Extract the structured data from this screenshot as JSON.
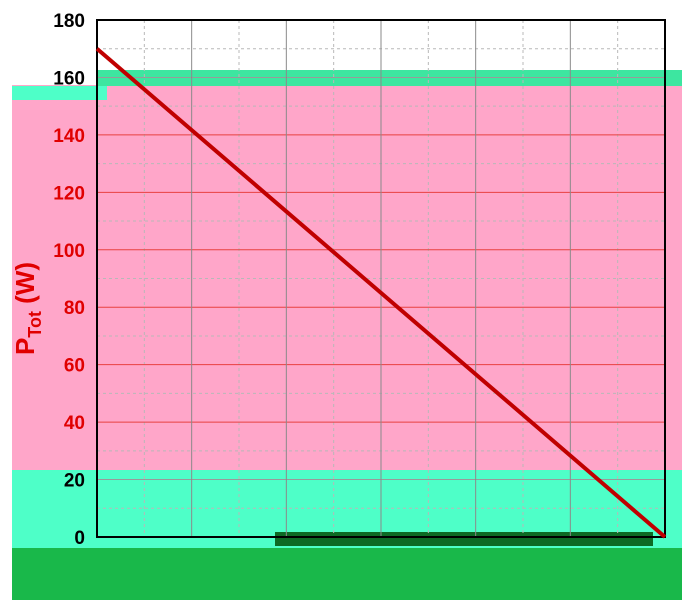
{
  "chart_data": {
    "type": "line",
    "title": "",
    "xlabel": "",
    "ylabel": {
      "main": "P",
      "subscript": "Tot",
      "unit": " (W)"
    },
    "x_tick_labels": [],
    "ylim": [
      0,
      180
    ],
    "yticks": [
      {
        "value": 0,
        "label": "0"
      },
      {
        "value": 20,
        "label": "20"
      },
      {
        "value": 40,
        "label": "40"
      },
      {
        "value": 60,
        "label": "60"
      },
      {
        "value": 80,
        "label": "80"
      },
      {
        "value": 100,
        "label": "100"
      },
      {
        "value": 120,
        "label": "120"
      },
      {
        "value": 140,
        "label": "140"
      },
      {
        "value": 160,
        "label": "160"
      },
      {
        "value": 180,
        "label": "180"
      }
    ],
    "grid": true,
    "series": [
      {
        "color": "#c00000",
        "points": [
          {
            "x": 0,
            "y": 170
          },
          {
            "x": 6,
            "y": 0
          }
        ]
      }
    ],
    "xlim": [
      0,
      6
    ]
  }
}
